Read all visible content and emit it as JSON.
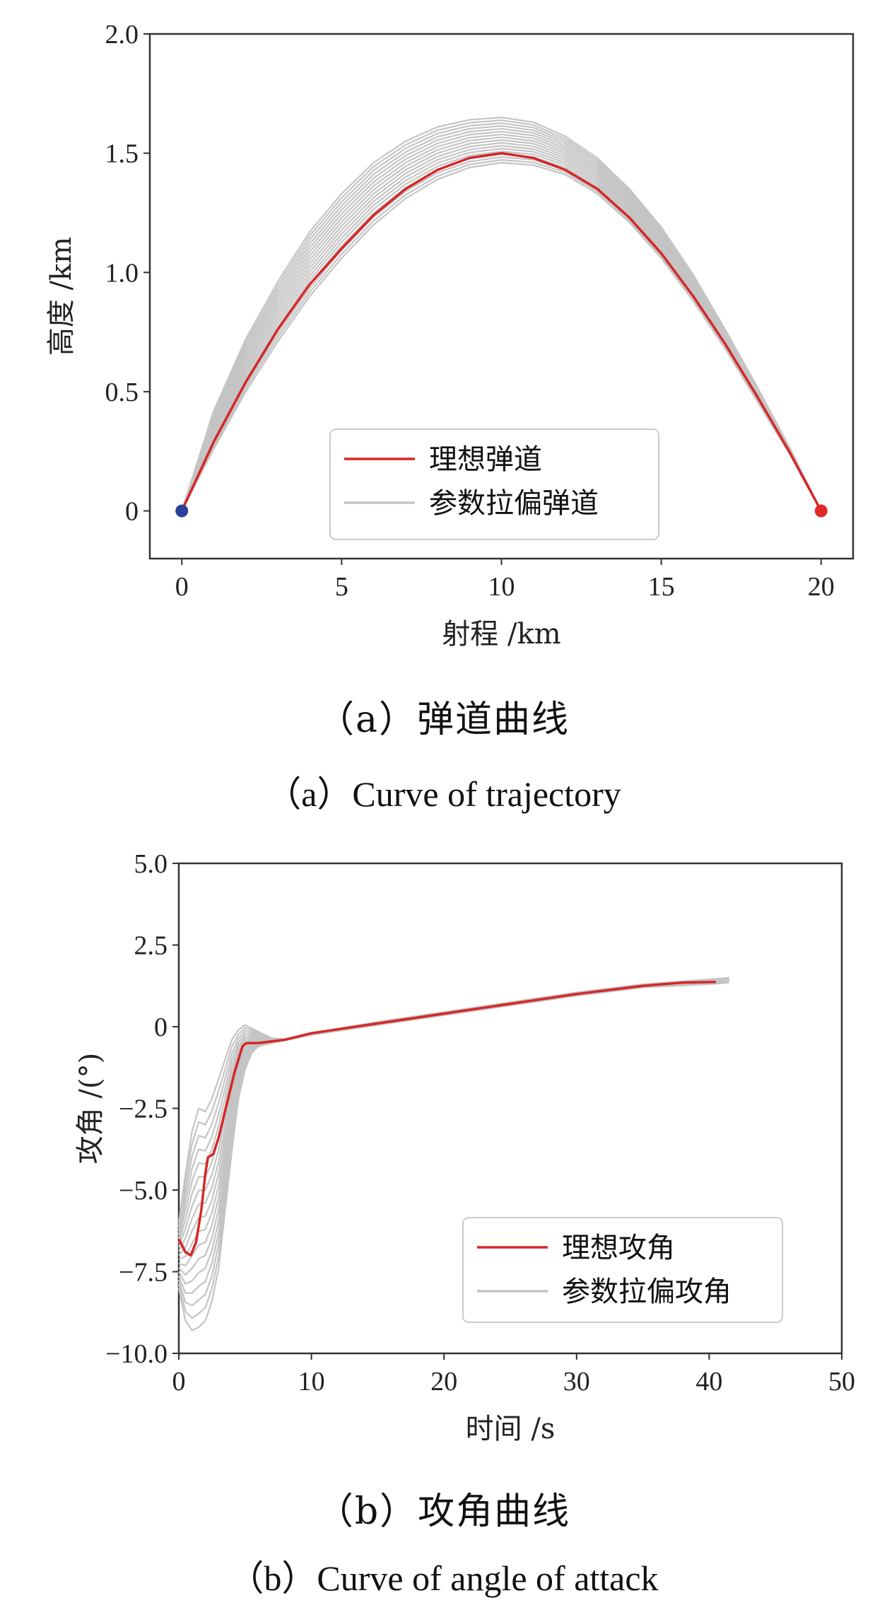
{
  "chart_data": [
    {
      "type": "line",
      "xlabel": "射程 /km",
      "ylabel": "高度 /km",
      "xlim": [
        -1,
        21
      ],
      "ylim": [
        -0.2,
        2.0
      ],
      "xticks": [
        "0",
        "5",
        "10",
        "15",
        "20"
      ],
      "yticks": [
        "0",
        "0.5",
        "1.0",
        "1.5",
        "2.0"
      ],
      "grid": false,
      "legend_position": "bottom-center",
      "series": [
        {
          "name": "理想弹道",
          "color": "#d62728",
          "x": [
            0,
            1,
            2,
            3,
            4,
            5,
            6,
            7,
            8,
            9,
            10,
            11,
            12,
            13,
            14,
            15,
            16,
            17,
            18,
            19,
            20
          ],
          "y": [
            0,
            0.29,
            0.54,
            0.76,
            0.95,
            1.1,
            1.24,
            1.35,
            1.43,
            1.48,
            1.5,
            1.48,
            1.43,
            1.35,
            1.23,
            1.08,
            0.9,
            0.7,
            0.48,
            0.25,
            0
          ]
        },
        {
          "name": "参数拉偏弹道",
          "color": "#c4c4c4",
          "envelope_upper": [
            0,
            0.42,
            0.72,
            0.96,
            1.17,
            1.33,
            1.46,
            1.55,
            1.61,
            1.64,
            1.65,
            1.63,
            1.57,
            1.48,
            1.35,
            1.19,
            0.99,
            0.76,
            0.52,
            0.27,
            0
          ],
          "envelope_lower": [
            0,
            0.26,
            0.5,
            0.71,
            0.9,
            1.06,
            1.2,
            1.31,
            1.39,
            1.44,
            1.46,
            1.45,
            1.41,
            1.33,
            1.21,
            1.06,
            0.88,
            0.68,
            0.46,
            0.24,
            0
          ]
        }
      ],
      "markers": [
        {
          "x": 0,
          "y": 0,
          "color": "#2a3f9a"
        },
        {
          "x": 20,
          "y": 0,
          "color": "#e02a2a"
        }
      ],
      "caption_cn": "（a）弹道曲线",
      "caption_en": "（a）Curve of trajectory"
    },
    {
      "type": "line",
      "xlabel": "时间 /s",
      "ylabel": "攻角 /(°)",
      "xlim": [
        0,
        50
      ],
      "ylim": [
        -10.0,
        5.0
      ],
      "xticks": [
        "0",
        "10",
        "20",
        "30",
        "40",
        "50"
      ],
      "yticks": [
        "−10.0",
        "−7.5",
        "−5.0",
        "−2.5",
        "0",
        "2.5",
        "5.0"
      ],
      "grid": false,
      "legend_position": "lower-right",
      "series": [
        {
          "name": "理想攻角",
          "color": "#d62728",
          "x": [
            0,
            0.5,
            0.9,
            1.3,
            1.7,
            2.0,
            2.2,
            2.6,
            3.0,
            3.6,
            4.2,
            4.8,
            5.1,
            6,
            8,
            10,
            15,
            20,
            25,
            30,
            35,
            38,
            40.5
          ],
          "y": [
            -6.5,
            -6.9,
            -7.0,
            -6.6,
            -5.6,
            -4.5,
            -4.0,
            -3.9,
            -3.4,
            -2.4,
            -1.4,
            -0.6,
            -0.5,
            -0.5,
            -0.4,
            -0.2,
            0.1,
            0.4,
            0.7,
            1.0,
            1.25,
            1.35,
            1.37
          ]
        },
        {
          "name": "参数拉偏攻角",
          "color": "#c4c4c4",
          "envelope_x": [
            0,
            0.5,
            1.0,
            1.5,
            2.0,
            2.5,
            3.0,
            3.5,
            4.0,
            4.5,
            5.0,
            5.5,
            6,
            7,
            8,
            10,
            15,
            20,
            25,
            30,
            35,
            40,
            41.5
          ],
          "envelope_upper": [
            -6.0,
            -4.5,
            -3.2,
            -2.5,
            -2.6,
            -2.2,
            -1.6,
            -1.0,
            -0.4,
            -0.1,
            0.05,
            -0.05,
            -0.15,
            -0.35,
            -0.38,
            -0.2,
            0.15,
            0.45,
            0.75,
            1.05,
            1.3,
            1.45,
            1.5
          ],
          "envelope_lower": [
            -8.0,
            -9.0,
            -9.3,
            -9.2,
            -9.0,
            -8.4,
            -7.4,
            -5.6,
            -3.8,
            -2.2,
            -1.3,
            -0.8,
            -0.6,
            -0.5,
            -0.42,
            -0.25,
            0.05,
            0.35,
            0.65,
            0.95,
            1.2,
            1.3,
            1.35
          ]
        }
      ],
      "caption_cn": "（b）攻角曲线",
      "caption_en": "（b）Curve of angle of attack"
    }
  ]
}
